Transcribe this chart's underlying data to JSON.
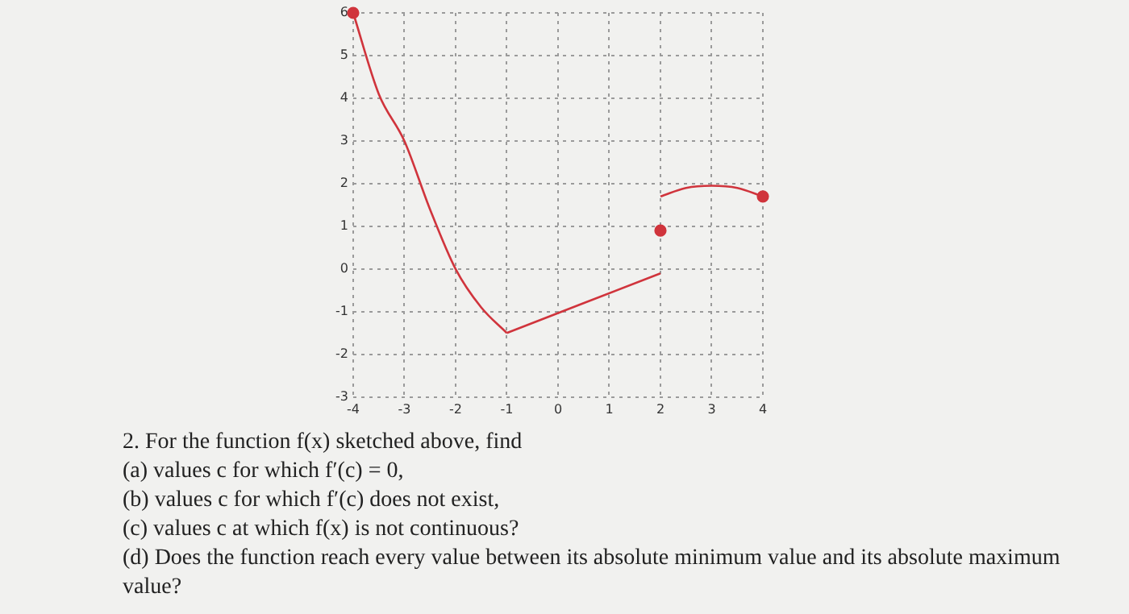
{
  "chart_data": {
    "type": "line",
    "xlim": [
      -4,
      4
    ],
    "ylim": [
      -3,
      6
    ],
    "xticks": [
      -4,
      -3,
      -2,
      -1,
      0,
      1,
      2,
      3,
      4
    ],
    "yticks": [
      -3,
      -2,
      -1,
      0,
      1,
      2,
      3,
      4,
      5,
      6
    ],
    "grid": true,
    "line_style": "solid",
    "series": [
      {
        "color": "#d0343c",
        "x": [
          -4,
          -3.5,
          -3,
          -2.5,
          -2,
          -1.5,
          -1
        ],
        "values": [
          6,
          4.1,
          3,
          1.4,
          0,
          -0.9,
          -1.5
        ]
      },
      {
        "color": "#d0343c",
        "x": [
          -1,
          2
        ],
        "values": [
          -1.5,
          -0.1
        ]
      },
      {
        "color": "#d0343c",
        "x": [
          2,
          2.5,
          3,
          3.5,
          4
        ],
        "values": [
          1.7,
          1.9,
          1.95,
          1.9,
          1.7
        ]
      },
      {
        "type": "scatter",
        "color": "#d0343c",
        "x": [
          -4,
          2,
          4
        ],
        "values": [
          6,
          0.9,
          1.7
        ]
      }
    ],
    "annotations": [
      "2. For the function f(x) sketched above, find",
      "(a) values c for which f′(c) = 0,",
      "(b) values c for which f′(c) does not exist,",
      "(c) values c at which f(x) is not continuous?",
      "(d) Does the function reach every value between its absolute minimum value and its absolute maximum value?"
    ]
  }
}
